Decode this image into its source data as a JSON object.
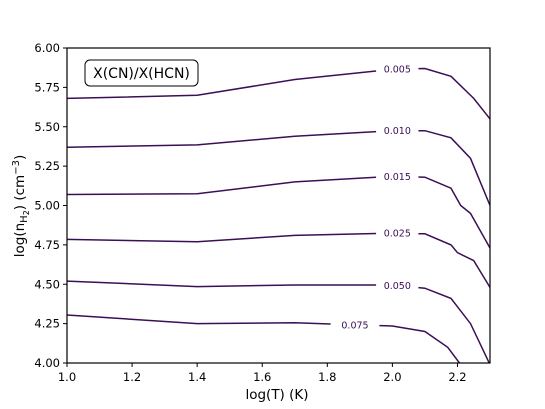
{
  "chart_data": {
    "type": "line",
    "title": "",
    "annotation": "X(CN)/X(HCN)",
    "xlabel": "log(T) (K)",
    "ylabel": {
      "prefix": "log(n",
      "subscript_base": "H",
      "subscript_sub": "2",
      "middle": ") (cm",
      "superscript": "−3",
      "suffix": ")"
    },
    "xlim": [
      1.0,
      2.3
    ],
    "ylim": [
      4.0,
      6.0
    ],
    "xticks": [
      "1.0",
      "1.2",
      "1.4",
      "1.6",
      "1.8",
      "2.0",
      "2.2"
    ],
    "yticks": [
      "4.00",
      "4.25",
      "4.50",
      "4.75",
      "5.00",
      "5.25",
      "5.50",
      "5.75",
      "6.00"
    ],
    "grid": false,
    "line_color": "#3b0f57",
    "series": [
      {
        "name": "0.005",
        "label_at": [
          1.95,
          2.08
        ],
        "x": [
          1.0,
          1.4,
          1.7,
          2.0,
          2.1,
          2.18,
          2.25,
          2.3
        ],
        "y": [
          5.68,
          5.7,
          5.8,
          5.865,
          5.87,
          5.82,
          5.68,
          5.55
        ]
      },
      {
        "name": "0.010",
        "label_at": [
          1.95,
          2.08
        ],
        "x": [
          1.0,
          1.4,
          1.7,
          2.0,
          2.1,
          2.18,
          2.24,
          2.3
        ],
        "y": [
          5.37,
          5.385,
          5.44,
          5.475,
          5.475,
          5.43,
          5.3,
          5.0
        ]
      },
      {
        "name": "0.015",
        "label_at": [
          1.95,
          2.08
        ],
        "x": [
          1.0,
          1.4,
          1.7,
          2.0,
          2.1,
          2.18,
          2.21,
          2.24,
          2.3
        ],
        "y": [
          5.07,
          5.075,
          5.15,
          5.185,
          5.18,
          5.11,
          5.0,
          4.95,
          4.73
        ]
      },
      {
        "name": "0.025",
        "label_at": [
          1.95,
          2.08
        ],
        "x": [
          1.0,
          1.4,
          1.7,
          2.0,
          2.1,
          2.18,
          2.2,
          2.25,
          2.3
        ],
        "y": [
          4.785,
          4.77,
          4.81,
          4.825,
          4.82,
          4.75,
          4.7,
          4.65,
          4.48
        ]
      },
      {
        "name": "0.050",
        "label_at": [
          1.95,
          2.08
        ],
        "x": [
          1.0,
          1.4,
          1.7,
          2.0,
          2.1,
          2.18,
          2.24,
          2.3
        ],
        "y": [
          4.52,
          4.485,
          4.495,
          4.495,
          4.475,
          4.41,
          4.25,
          3.99
        ]
      },
      {
        "name": "0.075",
        "label_at": [
          1.81,
          1.96
        ],
        "x": [
          1.0,
          1.4,
          1.7,
          2.0,
          2.1,
          2.17,
          2.21
        ],
        "y": [
          4.305,
          4.25,
          4.255,
          4.235,
          4.2,
          4.1,
          3.99
        ]
      }
    ]
  }
}
